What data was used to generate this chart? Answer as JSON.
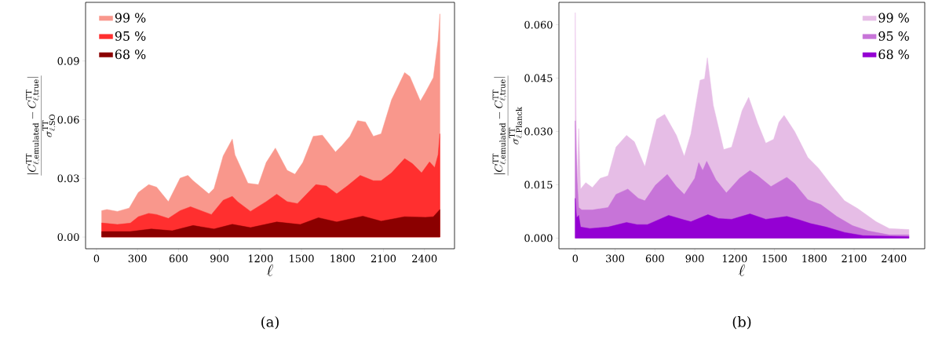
{
  "chart_data": [
    {
      "type": "area",
      "xlabel": "\\ell",
      "ylabel": "\\frac{|C^{\\rm TT}_{\\ell,{\\rm emulated}}-C^{\\rm TT}_{\\ell,{\\rm true}}|}{\\sigma^{\\rm TT}_{\\ell,{\\rm SO}}}",
      "annotations": [
        "(a)"
      ],
      "legend": "top left",
      "xlim": [
        -80,
        2620
      ],
      "ylim": [
        -0.006,
        0.12
      ],
      "xticks": [
        0,
        300,
        600,
        900,
        1200,
        1500,
        1800,
        2100,
        2400
      ],
      "yticks": [
        {
          "value": 0,
          "label": "0.00"
        },
        {
          "value": 0.03,
          "label": "0.03"
        },
        {
          "value": 0.06,
          "label": "0.06"
        },
        {
          "value": 0.09,
          "label": "0.09"
        }
      ],
      "series": [
        {
          "name": "99 %",
          "color": "#f9978c",
          "x": [
            38,
            76,
            153,
            239,
            306,
            382,
            440,
            526,
            612,
            669,
            707,
            764,
            822,
            860,
            927,
            994,
            1013,
            1108,
            1185,
            1242,
            1309,
            1395,
            1452,
            1510,
            1586,
            1653,
            1749,
            1796,
            1854,
            1911,
            1968,
            2026,
            2083,
            2159,
            2255,
            2293,
            2370,
            2408,
            2465,
            2500,
            2513
          ],
          "values": [
            0.0135,
            0.0141,
            0.0131,
            0.0148,
            0.0228,
            0.0268,
            0.0255,
            0.0181,
            0.0301,
            0.0315,
            0.0288,
            0.0255,
            0.0221,
            0.0248,
            0.0415,
            0.0501,
            0.0421,
            0.0275,
            0.0268,
            0.0381,
            0.0455,
            0.0341,
            0.0321,
            0.0381,
            0.0515,
            0.0521,
            0.0435,
            0.0468,
            0.0515,
            0.0595,
            0.0588,
            0.0515,
            0.0528,
            0.0701,
            0.0841,
            0.0821,
            0.0695,
            0.0741,
            0.0815,
            0.1008,
            0.1141
          ]
        },
        {
          "name": "95 %",
          "color": "#ff2f2f",
          "x": [
            38,
            153,
            248,
            306,
            382,
            440,
            526,
            612,
            688,
            764,
            841,
            927,
            994,
            1032,
            1127,
            1242,
            1319,
            1395,
            1471,
            1605,
            1682,
            1758,
            1835,
            1930,
            2026,
            2083,
            2159,
            2255,
            2312,
            2379,
            2437,
            2475,
            2500,
            2513
          ],
          "values": [
            0.0072,
            0.0064,
            0.0071,
            0.0104,
            0.0121,
            0.0115,
            0.0095,
            0.0135,
            0.0155,
            0.0135,
            0.0115,
            0.0188,
            0.0208,
            0.0181,
            0.0131,
            0.0181,
            0.0219,
            0.0181,
            0.0171,
            0.0268,
            0.0261,
            0.0221,
            0.0261,
            0.0315,
            0.0288,
            0.0288,
            0.0328,
            0.0401,
            0.0375,
            0.0328,
            0.0384,
            0.0355,
            0.0421,
            0.0528
          ]
        },
        {
          "name": "68 %",
          "color": "#8b0000",
          "x": [
            38,
            248,
            401,
            554,
            707,
            860,
            994,
            1127,
            1319,
            1491,
            1624,
            1758,
            1949,
            2083,
            2255,
            2408,
            2465,
            2513
          ],
          "values": [
            0.0028,
            0.0028,
            0.0041,
            0.0032,
            0.0059,
            0.0041,
            0.0065,
            0.0048,
            0.0077,
            0.0064,
            0.0099,
            0.0077,
            0.0107,
            0.0081,
            0.0104,
            0.0101,
            0.0104,
            0.0141
          ]
        }
      ]
    },
    {
      "type": "area",
      "xlabel": "\\ell",
      "ylabel": "\\frac{|C^{\\rm TT}_{\\ell,{\\rm emulated}}-C^{\\rm TT}_{\\ell,{\\rm true}}|}{\\sigma^{\\rm TT}_{\\ell,{\\rm Planck}}}",
      "annotations": [
        "(b)"
      ],
      "legend": "top right",
      "xlim": [
        -123,
        2632
      ],
      "ylim": [
        -0.003,
        0.0663
      ],
      "xticks": [
        0,
        300,
        600,
        900,
        1200,
        1500,
        1800,
        2100,
        2400
      ],
      "yticks": [
        {
          "value": 0,
          "label": "0.000"
        },
        {
          "value": 0.015,
          "label": "0.015"
        },
        {
          "value": 0.03,
          "label": "0.030"
        },
        {
          "value": 0.045,
          "label": "0.045"
        },
        {
          "value": 0.06,
          "label": "0.060"
        }
      ],
      "series": [
        {
          "name": "99 %",
          "color": "#e6bde6",
          "x": [
            0,
            6,
            14,
            26,
            40,
            79,
            129,
            188,
            247,
            307,
            386,
            445,
            524,
            613,
            673,
            762,
            821,
            871,
            940,
            974,
            995,
            1039,
            1118,
            1178,
            1257,
            1306,
            1375,
            1435,
            1494,
            1534,
            1573,
            1652,
            1751,
            1831,
            1930,
            2028,
            2127,
            2266,
            2365,
            2513
          ],
          "values": [
            0.0634,
            0.0345,
            0.0153,
            0.0308,
            0.0138,
            0.0156,
            0.0142,
            0.0168,
            0.0175,
            0.0256,
            0.0289,
            0.0271,
            0.0201,
            0.0334,
            0.0348,
            0.0289,
            0.023,
            0.0293,
            0.0444,
            0.0448,
            0.0507,
            0.0374,
            0.0249,
            0.0256,
            0.0359,
            0.0396,
            0.0322,
            0.0267,
            0.0278,
            0.0326,
            0.0345,
            0.03,
            0.0227,
            0.0197,
            0.0149,
            0.0105,
            0.0083,
            0.0046,
            0.0027,
            0.0024
          ]
        },
        {
          "name": "95 %",
          "color": "#c774d8",
          "x": [
            0,
            14,
            26,
            49,
            129,
            247,
            307,
            396,
            475,
            524,
            604,
            693,
            762,
            821,
            900,
            930,
            960,
            990,
            1059,
            1138,
            1237,
            1316,
            1375,
            1474,
            1593,
            1652,
            1751,
            1850,
            1969,
            2088,
            2207,
            2365,
            2513
          ],
          "values": [
            0.033,
            0.016,
            0.0086,
            0.0079,
            0.0079,
            0.0086,
            0.0123,
            0.0138,
            0.0112,
            0.0105,
            0.0149,
            0.0179,
            0.0145,
            0.0123,
            0.0168,
            0.0212,
            0.019,
            0.0216,
            0.0164,
            0.0127,
            0.0168,
            0.019,
            0.0175,
            0.0145,
            0.0171,
            0.0153,
            0.0108,
            0.0094,
            0.0061,
            0.0035,
            0.002,
            0.0009,
            0.0009
          ]
        },
        {
          "name": "68 %",
          "color": "#9400d3",
          "x": [
            0,
            10,
            26,
            40,
            109,
            247,
            386,
            465,
            544,
            703,
            821,
            871,
            999,
            1079,
            1178,
            1316,
            1435,
            1593,
            1672,
            1771,
            1890,
            2028,
            2167,
            2513
          ],
          "values": [
            0.0112,
            0.0057,
            0.0064,
            0.0031,
            0.0027,
            0.0031,
            0.0044,
            0.0038,
            0.0038,
            0.0064,
            0.0051,
            0.0046,
            0.0066,
            0.0055,
            0.0053,
            0.0068,
            0.0053,
            0.0061,
            0.0053,
            0.0041,
            0.0031,
            0.0016,
            0.0007,
            0.0004
          ]
        }
      ]
    }
  ]
}
